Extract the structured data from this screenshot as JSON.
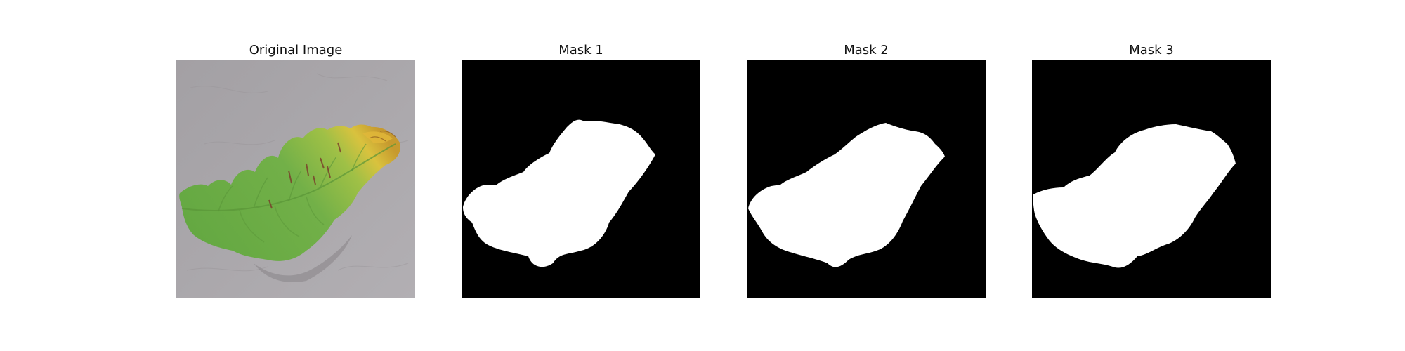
{
  "figure": {
    "panels": [
      {
        "title": "Original Image"
      },
      {
        "title": "Mask 1"
      },
      {
        "title": "Mask 2"
      },
      {
        "title": "Mask 3"
      }
    ]
  },
  "colors": {
    "background": "#ffffff",
    "mask_background": "#000000",
    "mask_foreground": "#ffffff",
    "leaf_green": "#6aaa45",
    "leaf_yellow": "#d8bf3e",
    "surface_gray": "#a7a4a8"
  }
}
